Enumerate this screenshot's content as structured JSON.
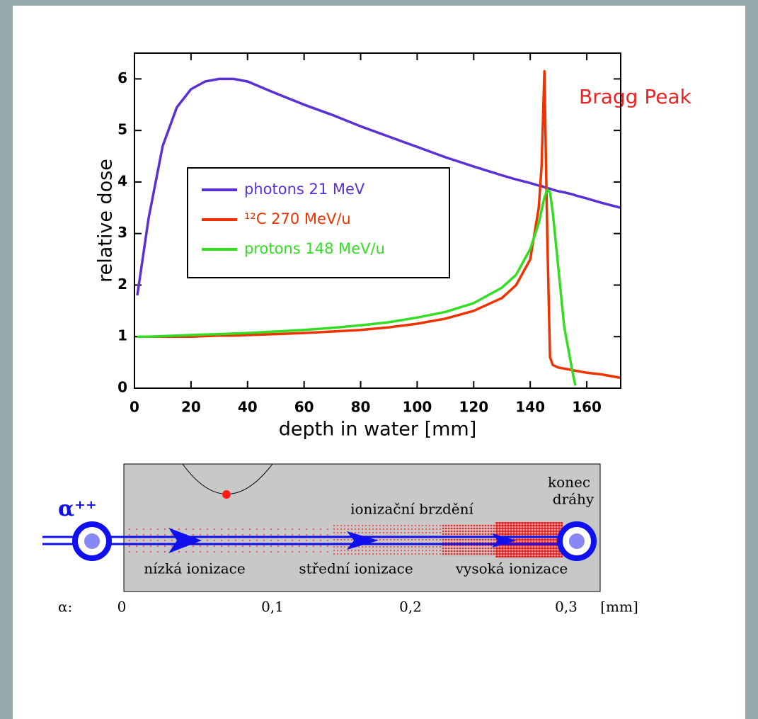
{
  "chart_data": {
    "type": "line",
    "annotation": "Bragg Peak",
    "x_label": "depth in water [mm]",
    "y_label": "relative dose",
    "x": [
      1,
      5,
      10,
      15,
      20,
      25,
      30,
      35,
      40,
      50,
      60,
      70,
      80,
      90,
      100,
      110,
      120,
      130,
      135,
      140,
      143,
      144,
      145,
      146,
      147,
      148,
      150,
      152,
      155,
      156,
      160,
      165,
      172
    ],
    "series": [
      {
        "name": "photons 21 MeV",
        "color": "#5a30d4",
        "values": [
          1.8,
          3.3,
          4.7,
          5.45,
          5.8,
          5.95,
          6.0,
          6.0,
          5.95,
          5.72,
          5.5,
          5.3,
          5.08,
          4.88,
          4.68,
          4.48,
          4.3,
          4.13,
          4.05,
          3.98,
          3.93,
          3.92,
          3.9,
          3.88,
          3.87,
          3.85,
          3.82,
          3.8,
          3.76,
          3.74,
          3.68,
          3.6,
          3.5
        ]
      },
      {
        "name": "¹²C 270 MeV/u",
        "color": "#ee3300",
        "values": [
          1.0,
          1.0,
          1.0,
          1.0,
          1.0,
          1.01,
          1.02,
          1.02,
          1.03,
          1.05,
          1.07,
          1.1,
          1.13,
          1.18,
          1.25,
          1.35,
          1.5,
          1.75,
          2.0,
          2.5,
          3.5,
          4.3,
          6.15,
          3.0,
          0.6,
          0.45,
          0.4,
          0.38,
          0.35,
          0.34,
          0.3,
          0.27,
          0.2
        ]
      },
      {
        "name": "protons 148 MeV/u",
        "color": "#33dd22",
        "values": [
          1.0,
          1.0,
          1.01,
          1.02,
          1.03,
          1.04,
          1.05,
          1.06,
          1.07,
          1.1,
          1.13,
          1.17,
          1.22,
          1.28,
          1.37,
          1.48,
          1.65,
          1.95,
          2.2,
          2.7,
          3.2,
          3.45,
          3.7,
          3.85,
          3.8,
          3.4,
          2.3,
          1.2,
          0.3,
          0.05,
          null,
          null,
          null
        ]
      }
    ],
    "xlim": [
      0,
      172
    ],
    "ylim": [
      0,
      6.5
    ],
    "xticks": [
      0,
      20,
      40,
      60,
      80,
      100,
      120,
      140,
      160
    ],
    "yticks": [
      0,
      1,
      2,
      3,
      4,
      5,
      6
    ]
  },
  "diagram": {
    "particle": "α⁺⁺",
    "end_label": [
      "konec",
      "dráhy"
    ],
    "middle_label": "ionizační brzdění",
    "zones": [
      "nízká ionizace",
      "střední ionizace",
      "vysoká ionizace"
    ],
    "scale_symbol": "α:",
    "scale_ticks": [
      "0",
      "0,1",
      "0,2",
      "0,3"
    ],
    "scale_unit": "[mm]"
  }
}
